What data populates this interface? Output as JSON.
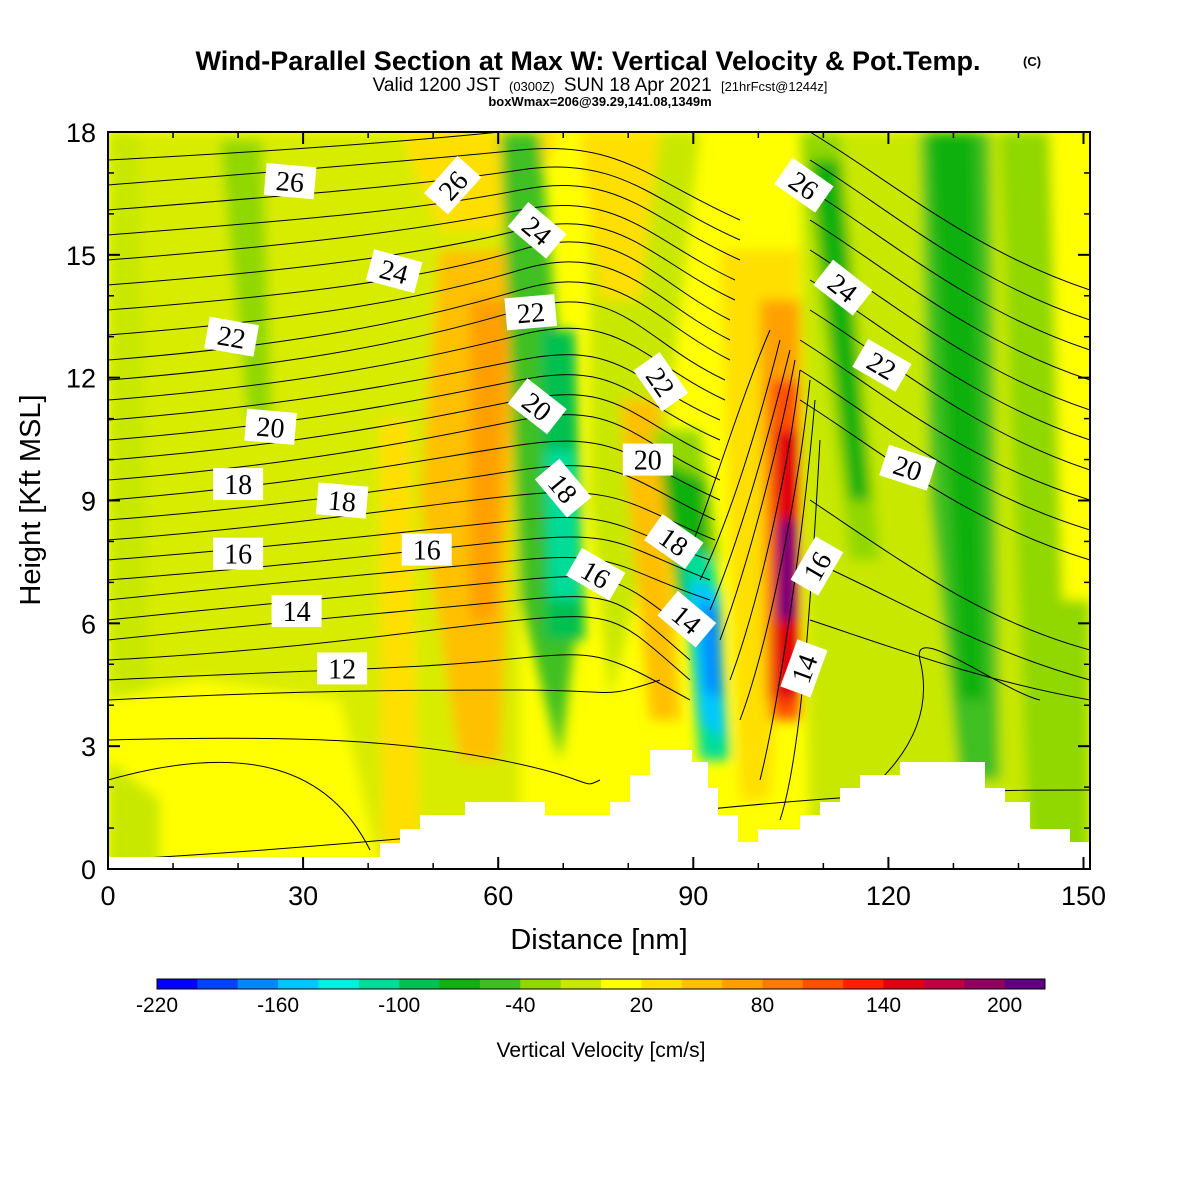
{
  "chart_data": {
    "type": "contour",
    "title": {
      "main": "Wind-Parallel Section at Max W: Vertical Velocity & Pot.Temp.",
      "main_mark": "(C)",
      "valid": "Valid 1200 JST",
      "valid_utc": "(0300Z)",
      "valid_date": "SUN 18 Apr 2021",
      "forecast": "[21hrFcst@1244z]",
      "box": "boxWmax=206@39.29,141.08,1349m"
    },
    "xlabel": "Distance [nm]",
    "ylabel": "Height [Kft MSL]",
    "xlim": [
      0,
      151
    ],
    "ylim": [
      0,
      18
    ],
    "x_ticks": [
      "0",
      "30",
      "60",
      "90",
      "120",
      "150"
    ],
    "y_ticks": [
      "0",
      "3",
      "6",
      "9",
      "12",
      "15",
      "18"
    ],
    "colorbar": {
      "label": "Vertical Velocity [cm/s]",
      "tick_labels": [
        "-220",
        "-160",
        "-100",
        "-40",
        "20",
        "80",
        "140",
        "200"
      ],
      "tick_values": [
        -220,
        -160,
        -100,
        -40,
        20,
        80,
        140,
        200
      ],
      "levels": [
        -220,
        -200,
        -180,
        -160,
        -140,
        -120,
        -100,
        -80,
        -60,
        -40,
        -20,
        0,
        20,
        40,
        60,
        80,
        100,
        120,
        140,
        160,
        180,
        200,
        220
      ],
      "colors": [
        "#0000ff",
        "#0044ff",
        "#0088ff",
        "#00c8ff",
        "#00f0e0",
        "#00dd99",
        "#00c050",
        "#10b010",
        "#40c020",
        "#90d800",
        "#c8e800",
        "#ffff00",
        "#ffdf00",
        "#ffc000",
        "#ffa000",
        "#ff7a00",
        "#ff5000",
        "#ff1e00",
        "#e00010",
        "#c00040",
        "#900060",
        "#600080"
      ]
    },
    "potential_temperature_labels": [
      {
        "text": "26",
        "x": 28,
        "y": 16.8,
        "angle": 5
      },
      {
        "text": "26",
        "x": 53,
        "y": 16.7,
        "angle": -48
      },
      {
        "text": "26",
        "x": 107,
        "y": 16.7,
        "angle": 35
      },
      {
        "text": "24",
        "x": 66,
        "y": 15.6,
        "angle": 40
      },
      {
        "text": "24",
        "x": 44,
        "y": 14.6,
        "angle": 15
      },
      {
        "text": "24",
        "x": 113,
        "y": 14.2,
        "angle": 38
      },
      {
        "text": "22",
        "x": 65,
        "y": 13.6,
        "angle": -5
      },
      {
        "text": "22",
        "x": 19,
        "y": 13.0,
        "angle": 10
      },
      {
        "text": "22",
        "x": 119,
        "y": 12.3,
        "angle": 30
      },
      {
        "text": "22",
        "x": 85,
        "y": 11.9,
        "angle": 55
      },
      {
        "text": "20",
        "x": 66,
        "y": 11.3,
        "angle": 38
      },
      {
        "text": "20",
        "x": 25,
        "y": 10.8,
        "angle": 5
      },
      {
        "text": "20",
        "x": 83,
        "y": 10.0,
        "angle": 0
      },
      {
        "text": "20",
        "x": 123,
        "y": 9.8,
        "angle": 18
      },
      {
        "text": "18",
        "x": 70,
        "y": 9.3,
        "angle": 50
      },
      {
        "text": "18",
        "x": 20,
        "y": 9.4,
        "angle": 0
      },
      {
        "text": "18",
        "x": 36,
        "y": 9.0,
        "angle": 5
      },
      {
        "text": "18",
        "x": 87,
        "y": 8.0,
        "angle": 35
      },
      {
        "text": "16",
        "x": 20,
        "y": 7.7,
        "angle": 0
      },
      {
        "text": "16",
        "x": 49,
        "y": 7.8,
        "angle": 0
      },
      {
        "text": "16",
        "x": 75,
        "y": 7.2,
        "angle": 30
      },
      {
        "text": "16",
        "x": 109,
        "y": 7.4,
        "angle": -60
      },
      {
        "text": "14",
        "x": 29,
        "y": 6.3,
        "angle": 0
      },
      {
        "text": "14",
        "x": 89,
        "y": 6.1,
        "angle": 40
      },
      {
        "text": "14",
        "x": 107,
        "y": 4.9,
        "angle": -70
      },
      {
        "text": "12",
        "x": 36,
        "y": 4.9,
        "angle": 0
      }
    ]
  }
}
